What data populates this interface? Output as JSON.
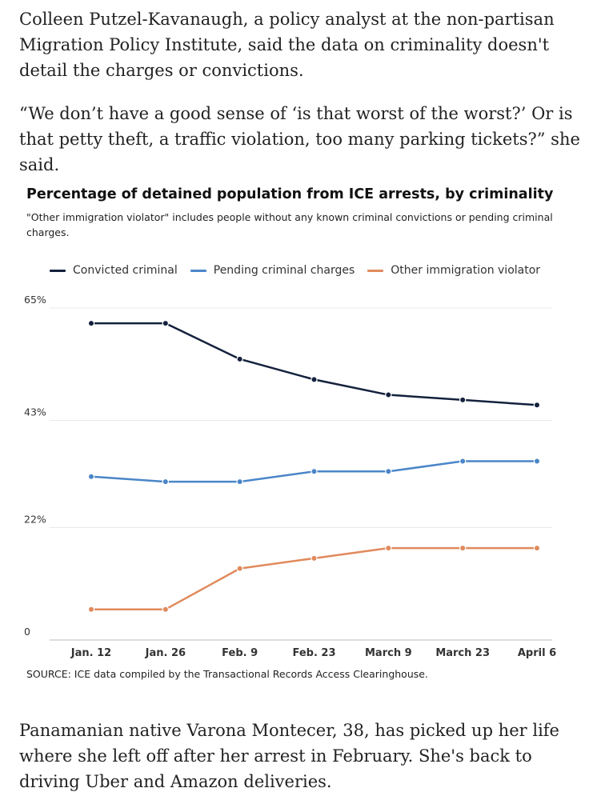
{
  "article": {
    "paragraph_1": "Colleen Putzel-Kavanaugh, a policy analyst at the non-partisan Migration Policy Institute, said the data on criminality doesn't detail the charges or convictions.",
    "paragraph_2": "“We don’t have a good sense of ‘is that worst of the worst?’ Or is that petty theft, a traffic violation, too many parking tickets?” she said.",
    "paragraph_3": "Panamanian native Varona Montecer, 38, has picked up her life where she left off after her arrest in February. She's back to driving Uber and Amazon deliveries."
  },
  "chart_data": {
    "type": "line",
    "title": "Percentage of detained population from ICE arrests, by criminality",
    "subtitle": "\"Other immigration violator\" includes people without any known criminal convictions or pending criminal charges.",
    "source": "SOURCE: ICE data compiled by the Transactional Records Access Clearinghouse.",
    "xlabel": "",
    "ylabel": "",
    "ylim": [
      0,
      65
    ],
    "yticks": [
      {
        "value": 0,
        "label": "0"
      },
      {
        "value": 22,
        "label": "22%"
      },
      {
        "value": 43,
        "label": "43%"
      },
      {
        "value": 65,
        "label": "65%"
      }
    ],
    "categories": [
      "Jan. 12",
      "Jan. 26",
      "Feb. 9",
      "Feb. 23",
      "March 9",
      "March 23",
      "April 6"
    ],
    "legend_position": "top",
    "series": [
      {
        "name": "Convicted criminal",
        "color": "#14213d",
        "values": [
          62,
          62,
          55,
          51,
          48,
          47,
          46
        ]
      },
      {
        "name": "Pending criminal charges",
        "color": "#4a86c8",
        "values": [
          32,
          31,
          31,
          33,
          33,
          35,
          35
        ]
      },
      {
        "name": "Other immigration violator",
        "color": "#e08a5c",
        "values": [
          6,
          6,
          14,
          16,
          18,
          18,
          18
        ]
      }
    ]
  }
}
